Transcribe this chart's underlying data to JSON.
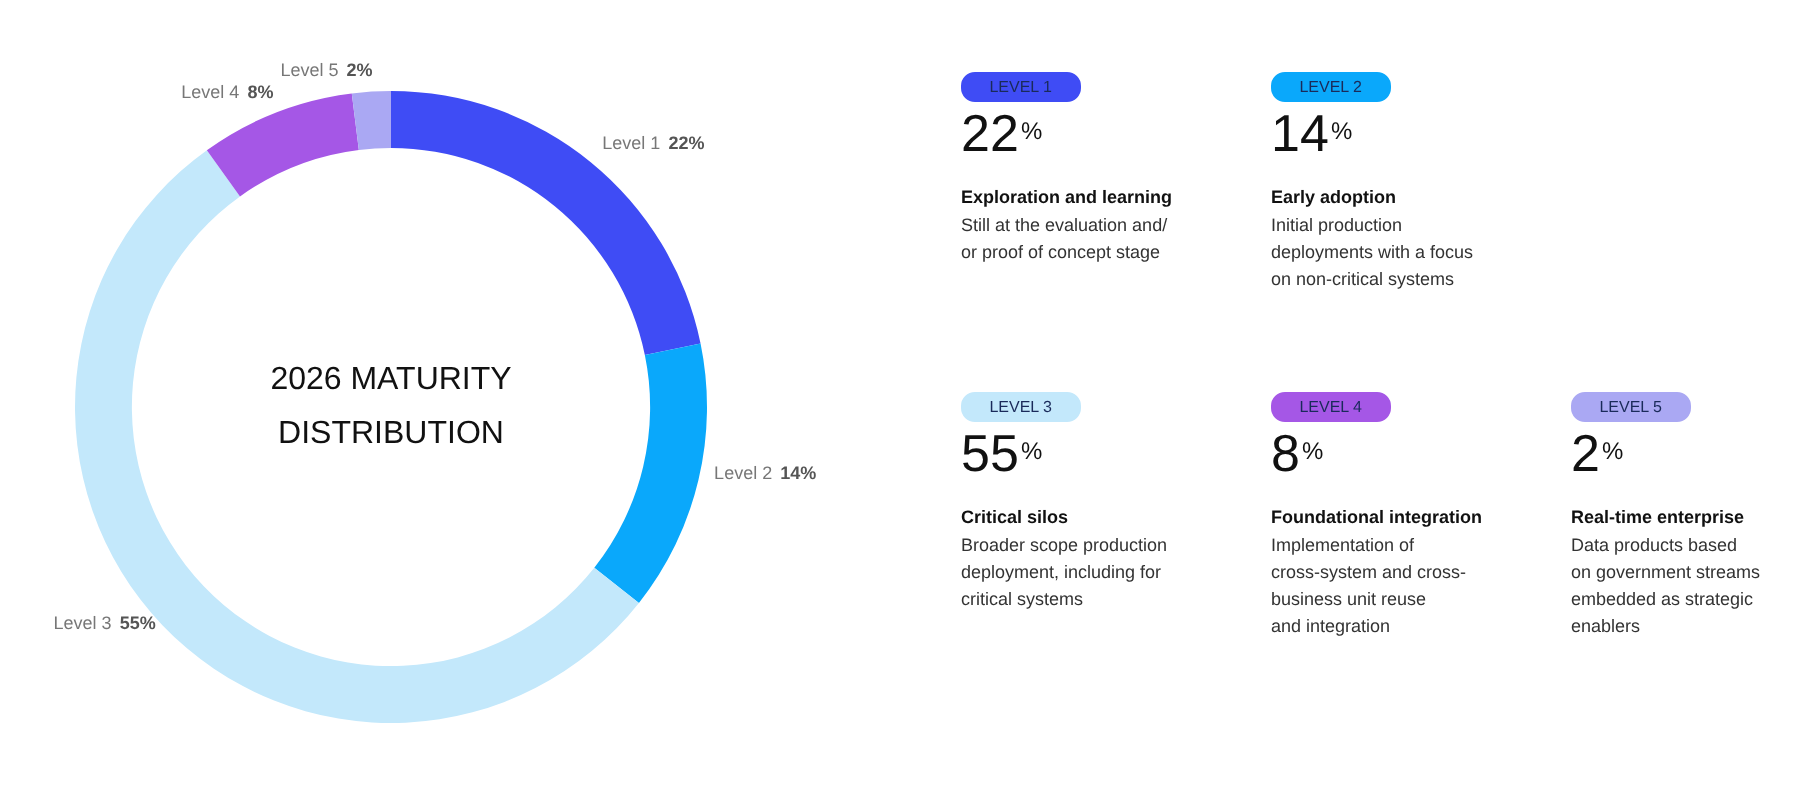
{
  "chart_data": {
    "type": "donut",
    "title": "2026 MATURITY\nDISTRIBUTION",
    "categories": [
      "Level 1",
      "Level 2",
      "Level 3",
      "Level 4",
      "Level 5"
    ],
    "values": [
      22,
      14,
      55,
      8,
      2
    ],
    "colors": [
      "#3f4cf5",
      "#0aa8fb",
      "#c3e8fb",
      "#a557e6",
      "#aaa8f3"
    ],
    "value_labels": [
      "22%",
      "14%",
      "55%",
      "8%",
      "2%"
    ],
    "annotations": [
      "LEVEL 1",
      "22$^{%}$",
      "Exploration and learning",
      "Still at the evaluation and/\nor proof of concept stage",
      "LEVEL 2",
      "14$^{%}$",
      "Early adoption",
      "Initial production\ndeployments with a focus\non non-critical systems",
      "LEVEL 3",
      "55$^{%}$",
      "Critical silos",
      "Broader scope production\ndeployment, including for\ncritical systems",
      "LEVEL 4",
      "8$^{%}$",
      "Foundational integration",
      "Implementation of\ncross-system and cross-\nbusiness unit reuse\nand integration",
      "LEVEL 5",
      "2$^{%}$",
      "Real-time enterprise",
      "Data products based\non government streams\nembedded as strategic\nenablers"
    ]
  }
}
